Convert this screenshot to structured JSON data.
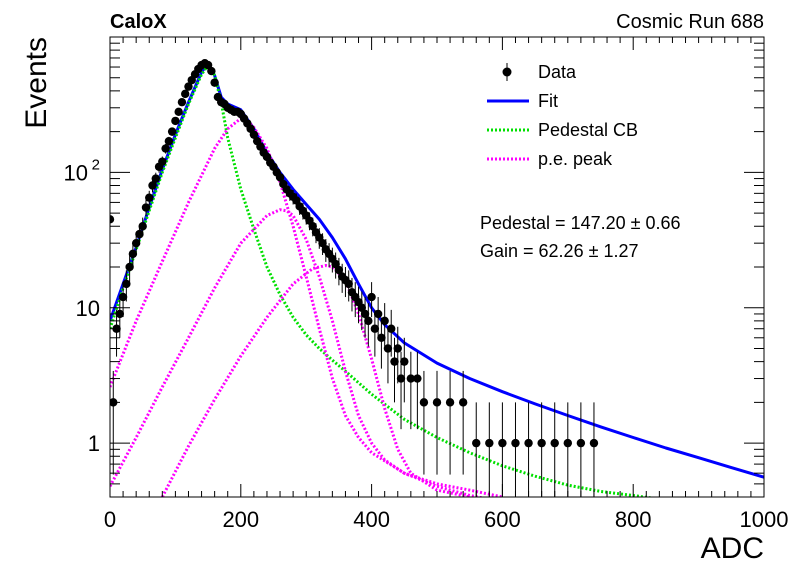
{
  "header": {
    "experiment": "CaloX",
    "run": "Cosmic Run 688"
  },
  "fit_results": {
    "pedestal": "Pedestal = 147.20 ± 0.66",
    "gain": "Gain = 62.26 ± 1.27"
  },
  "chart_data": {
    "type": "scatter",
    "xlabel": "ADC",
    "ylabel": "Events",
    "xlim": [
      0,
      1000
    ],
    "ylim": [
      0.4,
      1000
    ],
    "yscale": "log",
    "x_ticks": [
      0,
      200,
      400,
      600,
      800,
      1000
    ],
    "x_tick_labels": [
      "0",
      "200",
      "400",
      "600",
      "800",
      "1000"
    ],
    "y_major_ticks": [
      1,
      10,
      100
    ],
    "y_tick_labels": [
      {
        "value": 1,
        "mantissa": "1",
        "exp": ""
      },
      {
        "value": 10,
        "mantissa": "10",
        "exp": ""
      },
      {
        "value": 100,
        "mantissa": "10",
        "exp": "2"
      }
    ],
    "legend": {
      "position": "top-right",
      "entries": [
        {
          "label": "Data",
          "kind": "marker",
          "color": "#000000"
        },
        {
          "label": "Fit",
          "kind": "solid",
          "color": "#0000ff"
        },
        {
          "label": "Pedestal CB",
          "kind": "dotted",
          "color": "#00e000"
        },
        {
          "label": "p.e. peak",
          "kind": "dotted",
          "color": "#ff00ff"
        }
      ]
    },
    "series": [
      {
        "name": "Data",
        "kind": "points",
        "color": "#000000",
        "x": [
          0,
          5,
          10,
          15,
          20,
          25,
          30,
          35,
          40,
          45,
          50,
          55,
          60,
          65,
          70,
          75,
          80,
          85,
          90,
          95,
          100,
          105,
          110,
          115,
          120,
          125,
          130,
          135,
          140,
          145,
          150,
          155,
          160,
          165,
          170,
          175,
          180,
          185,
          190,
          195,
          200,
          205,
          210,
          215,
          220,
          225,
          230,
          235,
          240,
          245,
          250,
          255,
          260,
          265,
          270,
          275,
          280,
          285,
          290,
          295,
          300,
          305,
          310,
          315,
          320,
          325,
          330,
          335,
          340,
          345,
          350,
          355,
          360,
          365,
          370,
          375,
          380,
          385,
          390,
          395,
          400,
          405,
          410,
          415,
          420,
          425,
          430,
          435,
          440,
          445,
          450,
          460,
          470,
          480,
          500,
          520,
          540,
          560,
          580,
          600,
          620,
          640,
          660,
          680,
          700,
          720,
          740
        ],
        "y": [
          45,
          2,
          7,
          9,
          12,
          15,
          20,
          25,
          30,
          35,
          40,
          55,
          65,
          80,
          90,
          110,
          120,
          150,
          170,
          200,
          240,
          280,
          330,
          380,
          430,
          480,
          530,
          580,
          620,
          640,
          620,
          560,
          460,
          360,
          330,
          320,
          300,
          290,
          280,
          280,
          270,
          250,
          230,
          210,
          190,
          170,
          155,
          140,
          130,
          118,
          110,
          100,
          92,
          82,
          75,
          70,
          66,
          62,
          56,
          52,
          48,
          44,
          40,
          36,
          33,
          30,
          27,
          25,
          23,
          21,
          19,
          17,
          16,
          15,
          13,
          12,
          11,
          10,
          9,
          8,
          12,
          7,
          9,
          6,
          8,
          5,
          7,
          4,
          5,
          3,
          4,
          3,
          3,
          2,
          2,
          2,
          2,
          1,
          1,
          1,
          1,
          1,
          1,
          1,
          1,
          1,
          1
        ]
      },
      {
        "name": "Fit",
        "kind": "line",
        "color": "#0000ff",
        "x": [
          0,
          20,
          40,
          60,
          80,
          100,
          120,
          140,
          150,
          160,
          170,
          180,
          200,
          220,
          240,
          260,
          280,
          300,
          320,
          340,
          360,
          380,
          400,
          420,
          450,
          500,
          550,
          600,
          650,
          700,
          750,
          800,
          850,
          900,
          950,
          1000
        ],
        "y": [
          8,
          15,
          28,
          55,
          105,
          190,
          330,
          550,
          640,
          520,
          360,
          320,
          290,
          210,
          140,
          100,
          75,
          58,
          45,
          33,
          23,
          15,
          10,
          7.5,
          5.5,
          3.9,
          3.0,
          2.4,
          1.95,
          1.6,
          1.32,
          1.1,
          0.92,
          0.78,
          0.66,
          0.56
        ]
      },
      {
        "name": "Pedestal CB",
        "kind": "dotted",
        "color": "#00e000",
        "x": [
          0,
          20,
          40,
          60,
          80,
          100,
          120,
          140,
          150,
          160,
          170,
          180,
          200,
          220,
          240,
          260,
          280,
          300,
          320,
          340,
          360,
          400,
          450,
          500,
          550,
          600,
          650,
          700,
          750,
          800,
          850,
          900
        ],
        "y": [
          7,
          14,
          27,
          52,
          100,
          180,
          320,
          530,
          620,
          520,
          330,
          180,
          75,
          38,
          20,
          12.5,
          8.5,
          6.3,
          5.0,
          4.1,
          3.4,
          2.3,
          1.5,
          1.1,
          0.85,
          0.68,
          0.57,
          0.49,
          0.44,
          0.41,
          0.38,
          0.36
        ]
      },
      {
        "name": "p.e. peak 1",
        "kind": "dotted",
        "color": "#ff00ff",
        "x": [
          0,
          40,
          80,
          120,
          160,
          180,
          200,
          210,
          220,
          240,
          260,
          280,
          300,
          320,
          340,
          360,
          380,
          400,
          450,
          500,
          550,
          600
        ],
        "y": [
          2.6,
          8,
          22,
          60,
          150,
          210,
          250,
          240,
          215,
          150,
          85,
          40,
          17,
          7,
          3,
          1.6,
          1.1,
          0.85,
          0.6,
          0.48,
          0.41,
          0.37
        ]
      },
      {
        "name": "p.e. peak 2",
        "kind": "dotted",
        "color": "#ff00ff",
        "x": [
          0,
          40,
          80,
          120,
          160,
          200,
          240,
          260,
          270,
          280,
          300,
          320,
          340,
          360,
          380,
          400,
          420,
          450,
          500,
          550,
          600
        ],
        "y": [
          0.48,
          1.1,
          2.6,
          6,
          14,
          30,
          48,
          53,
          52,
          48,
          32,
          17,
          8,
          3.4,
          1.6,
          1.0,
          0.75,
          0.6,
          0.5,
          0.45,
          0.4
        ]
      },
      {
        "name": "p.e. peak 3",
        "kind": "dotted",
        "color": "#ff00ff",
        "x": [
          80,
          120,
          160,
          200,
          240,
          280,
          310,
          330,
          340,
          360,
          380,
          400,
          420,
          440,
          460,
          500,
          550
        ],
        "y": [
          0.4,
          0.95,
          2.1,
          4.4,
          8.5,
          15,
          19.5,
          20.5,
          20,
          16,
          9,
          4.2,
          1.8,
          0.9,
          0.6,
          0.45,
          0.4
        ]
      }
    ]
  }
}
